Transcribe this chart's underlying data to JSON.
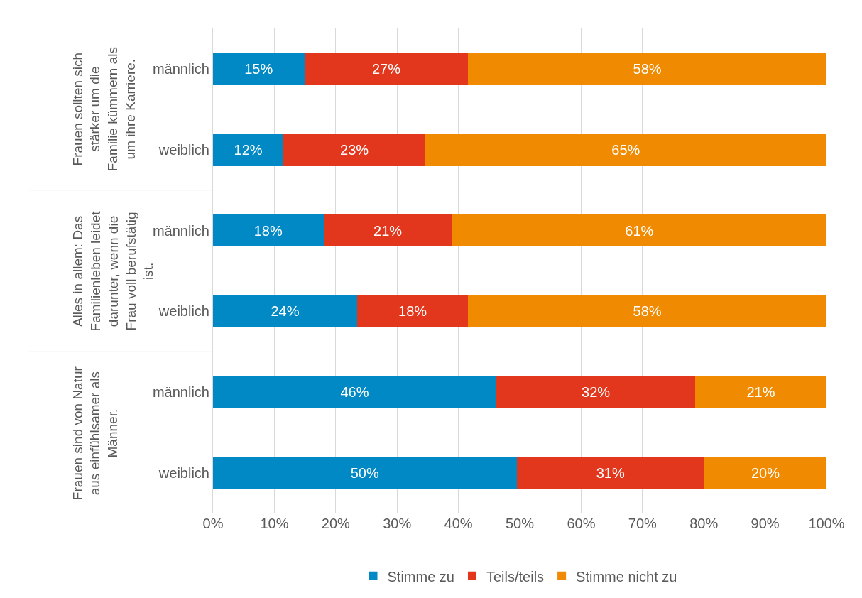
{
  "chart_data": {
    "type": "bar",
    "orientation": "horizontal",
    "stacked": true,
    "categories": [
      "männlich",
      "weiblich",
      "männlich",
      "weiblich",
      "männlich",
      "weiblich"
    ],
    "series": [
      {
        "name": "Stimme zu",
        "color": "#0089c4",
        "values": [
          14.9,
          11.5,
          18.0,
          23.5,
          46.2,
          49.5
        ],
        "value_labels": [
          "15%",
          "12%",
          "18%",
          "24%",
          "46%",
          "50%"
        ]
      },
      {
        "name": "Teils/teils",
        "color": "#e2371c",
        "values": [
          26.7,
          23.1,
          21.0,
          18.1,
          32.4,
          30.6
        ],
        "value_labels": [
          "27%",
          "23%",
          "21%",
          "18%",
          "32%",
          "31%"
        ]
      },
      {
        "name": "Stimme nicht zu",
        "color": "#f08a00",
        "values": [
          58.4,
          65.4,
          61.0,
          58.4,
          21.4,
          19.9
        ],
        "value_labels": [
          "58%",
          "65%",
          "61%",
          "58%",
          "21%",
          "20%"
        ]
      }
    ],
    "annotations": [
      "Frauen sollten sich stärker um die Familie kümmern als um ihre Karriere.",
      "Alles in allem: Das Familienleben leidet darunter, wenn die Frau voll berufstätig ist.",
      "Frauen sind von Natur aus einfühlsamer als Männer."
    ],
    "xlim": [
      0,
      100
    ],
    "xticks": [
      {
        "value": 0,
        "label": "0%"
      },
      {
        "value": 10,
        "label": "10%"
      },
      {
        "value": 20,
        "label": "20%"
      },
      {
        "value": 30,
        "label": "30%"
      },
      {
        "value": 40,
        "label": "40%"
      },
      {
        "value": 50,
        "label": "50%"
      },
      {
        "value": 60,
        "label": "60%"
      },
      {
        "value": 70,
        "label": "70%"
      },
      {
        "value": 80,
        "label": "80%"
      },
      {
        "value": 90,
        "label": "90%"
      },
      {
        "value": 100,
        "label": "100%"
      }
    ],
    "grid": "x",
    "legend": "bottom"
  }
}
